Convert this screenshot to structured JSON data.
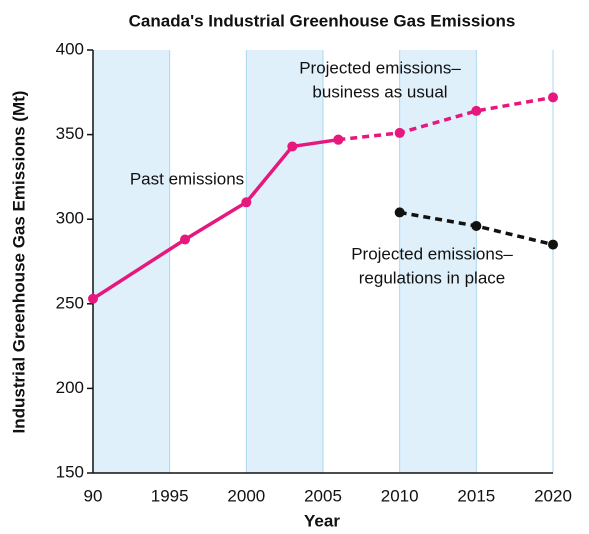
{
  "chart_data": {
    "type": "line",
    "title": "Canada's Industrial Greenhouse Gas Emissions",
    "x_label": "Year",
    "y_label": "Industrial Greenhouse Gas Emissions (Mt)",
    "xlim": [
      1990,
      2020
    ],
    "xticks": [
      {
        "value": 1990,
        "label": "90"
      },
      1995,
      2000,
      2005,
      2010,
      2015,
      2020
    ],
    "ylim": [
      150,
      400
    ],
    "yticks": [
      150,
      200,
      250,
      300,
      350,
      400
    ],
    "series": [
      {
        "color": "#e6177d",
        "dashed": false,
        "x": [
          1990,
          1996,
          2000,
          2003,
          2006
        ],
        "values": [
          253,
          288,
          310,
          343,
          347
        ]
      },
      {
        "color": "#e6177d",
        "dashed": true,
        "x": [
          2006,
          2010,
          2015,
          2020
        ],
        "values": [
          347,
          351,
          364,
          372
        ]
      },
      {
        "color": "#111111",
        "dashed": true,
        "x": [
          2010,
          2015,
          2020
        ],
        "values": [
          304,
          296,
          285
        ]
      }
    ],
    "annotations": [
      {
        "lines": [
          "Past emissions"
        ]
      },
      {
        "lines": [
          "Projected emissions–",
          "business as usual"
        ]
      },
      {
        "lines": [
          "Projected emissions–",
          "regulations in place"
        ]
      }
    ]
  }
}
